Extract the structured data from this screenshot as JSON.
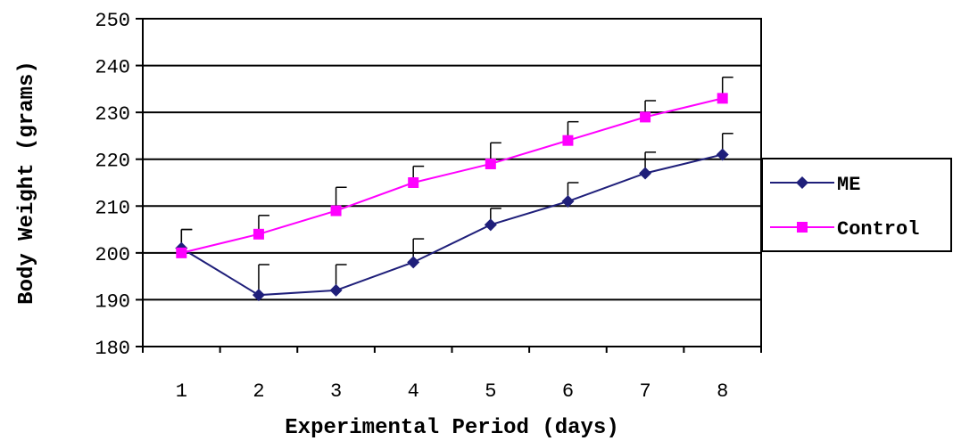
{
  "chart_data": {
    "type": "line",
    "title": "",
    "xlabel": "Experimental Period (days)",
    "ylabel": "Body Weight (grams)",
    "categories": [
      "1",
      "2",
      "3",
      "4",
      "5",
      "6",
      "7",
      "8"
    ],
    "ylim": [
      180,
      250
    ],
    "yticks": [
      "180",
      "190",
      "200",
      "210",
      "220",
      "230",
      "240",
      "250"
    ],
    "grid": "horizontal",
    "legend_position": "right",
    "series": [
      {
        "name": "ME",
        "color": "#1f1f7a",
        "marker": "diamond",
        "values": [
          201,
          191,
          192,
          198,
          206,
          211,
          217,
          221
        ],
        "error_upper": [
          4,
          6.5,
          5.5,
          5,
          3.5,
          4,
          4.5,
          4.5
        ]
      },
      {
        "name": "Control",
        "color": "#ff00ff",
        "marker": "square",
        "values": [
          200,
          204,
          209,
          215,
          219,
          224,
          229,
          233
        ],
        "error_upper": [
          5,
          4,
          5,
          3.5,
          4.5,
          4,
          3.5,
          4.5
        ]
      }
    ]
  }
}
